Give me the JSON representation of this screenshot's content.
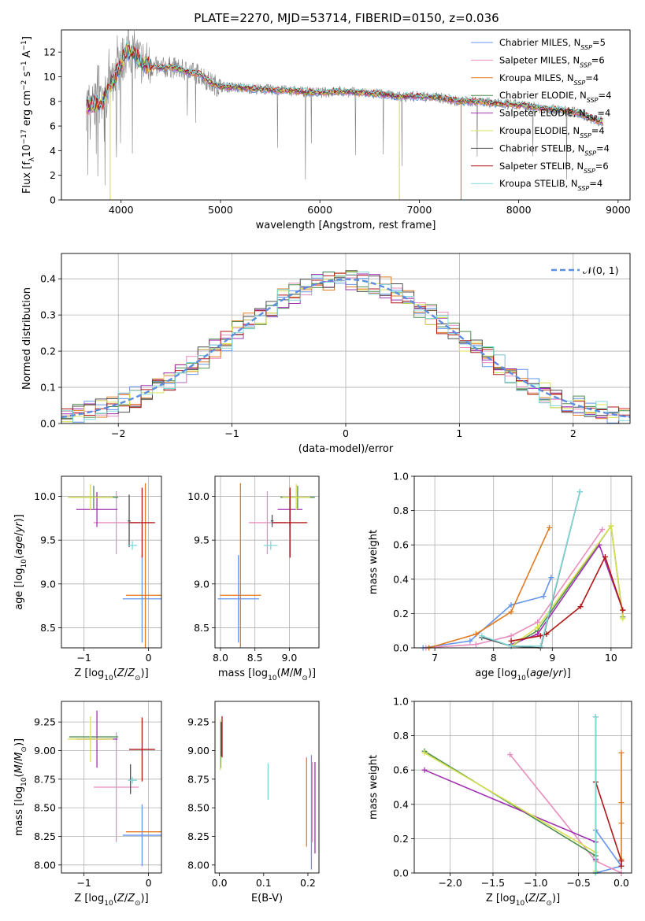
{
  "figure_title": "PLATE=2270, MJD=53714, FIBERID=0150, z=0.036",
  "colors": {
    "Chabrier MILES": "#6495ed",
    "Salpeter MILES": "#e88dbd",
    "Kroupa MILES": "#e07b20",
    "Chabrier ELODIE": "#4e8f4e",
    "Salpeter ELODIE": "#a030b0",
    "Kroupa ELODIE": "#d8e050",
    "Chabrier STELIB": "#505050",
    "Salpeter STELIB": "#b01818",
    "Kroupa STELIB": "#80d8d8",
    "data": "#808080",
    "normal": "#5b8ee0"
  },
  "chart_data": [
    {
      "id": "spectrum",
      "type": "line",
      "title": "",
      "xlabel": "wavelength [Angstrom, rest frame]",
      "ylabel": "Flux [f_λ10^-17 erg cm^-2 s^-1 A^-1]",
      "xlim": [
        3400,
        9120
      ],
      "ylim": [
        0,
        13.8
      ],
      "xticks": [
        4000,
        5000,
        6000,
        7000,
        8000,
        9000
      ],
      "yticks": [
        0,
        2,
        4,
        6,
        8,
        10,
        12
      ],
      "grid": false,
      "legend_position": "top-right",
      "legend": [
        {
          "name": "Chabrier MILES",
          "nssp": "5"
        },
        {
          "name": "Salpeter MILES",
          "nssp": "6"
        },
        {
          "name": "Kroupa MILES",
          "nssp": "4"
        },
        {
          "name": "Chabrier ELODIE",
          "nssp": "4"
        },
        {
          "name": "Salpeter ELODIE",
          "nssp": "4"
        },
        {
          "name": "Kroupa ELODIE",
          "nssp": "4"
        },
        {
          "name": "Chabrier STELIB",
          "nssp": "4"
        },
        {
          "name": "Salpeter STELIB",
          "nssp": "6"
        },
        {
          "name": "Kroupa STELIB",
          "nssp": "4"
        }
      ],
      "continuum": {
        "wavelength": [
          3650,
          3700,
          3800,
          3900,
          4000,
          4050,
          4100,
          4200,
          4300,
          4400,
          4500,
          4600,
          4700,
          4800,
          4900,
          5000,
          5200,
          5400,
          5600,
          5800,
          6000,
          6200,
          6400,
          6600,
          6800,
          7000,
          7200,
          7400,
          7600,
          7800,
          8000,
          8200,
          8400,
          8600,
          8800
        ],
        "flux": [
          7.6,
          7.8,
          7.7,
          9.4,
          11.1,
          12.1,
          12.0,
          11.3,
          10.8,
          10.7,
          10.8,
          10.6,
          10.3,
          10.2,
          9.5,
          9.2,
          9.1,
          9.0,
          8.9,
          8.8,
          8.7,
          8.8,
          8.7,
          8.6,
          8.4,
          8.4,
          8.3,
          8.0,
          8.0,
          7.8,
          7.7,
          7.5,
          7.3,
          7.1,
          6.4
        ]
      },
      "model_dropouts": [
        {
          "series": "Kroupa MILES",
          "wavelength": 7420
        },
        {
          "series": "Kroupa ELODIE",
          "wavelength": 6800
        },
        {
          "series": "Kroupa ELODIE",
          "wavelength": 3890
        }
      ]
    },
    {
      "id": "residuals",
      "type": "bar",
      "title": "",
      "xlabel": "(data-model)/error",
      "ylabel": "Normed distribution",
      "xlim": [
        -2.5,
        2.5
      ],
      "ylim": [
        0,
        0.47
      ],
      "xticks": [
        -2,
        -1,
        0,
        1,
        2
      ],
      "xtick_labels": [
        "−2",
        "−1",
        "0",
        "1",
        "2"
      ],
      "yticks": [
        0.0,
        0.1,
        0.2,
        0.3,
        0.4
      ],
      "grid": true,
      "legend_position": "top-right",
      "legend": [
        "𝒩(0, 1)"
      ],
      "bin_width": 0.1,
      "bins_from": -2.5,
      "bins_to": 2.5,
      "series_note": "Nine step histograms, one per model, closely following N(0,1)."
    },
    {
      "id": "age_vs_Z",
      "type": "scatter",
      "xlabel": "Z [log10(Z/Z⊙)]",
      "ylabel": "age [log10(age/yr)]",
      "xlim": [
        -1.35,
        0.2
      ],
      "ylim": [
        8.27,
        10.23
      ],
      "xticks": [
        -1,
        0
      ],
      "xtick_labels": [
        "−1",
        "0"
      ],
      "yticks": [
        8.5,
        9.0,
        9.5,
        10.0
      ],
      "grid": true,
      "points": [
        {
          "series": "Chabrier MILES",
          "x": -0.1,
          "y": 8.83,
          "xerr": 0.3,
          "yerr": 0.5
        },
        {
          "series": "Salpeter MILES",
          "x": -0.5,
          "y": 9.7,
          "xerr": 0.35,
          "yerr": 0.36
        },
        {
          "series": "Kroupa MILES",
          "x": -0.05,
          "y": 8.87,
          "xerr": 0.3,
          "yerr": 1.28
        },
        {
          "series": "Chabrier ELODIE",
          "x": -0.85,
          "y": 9.99,
          "xerr": 0.38,
          "yerr": 0.13
        },
        {
          "series": "Salpeter ELODIE",
          "x": -0.8,
          "y": 9.85,
          "xerr": 0.32,
          "yerr": 0.2
        },
        {
          "series": "Kroupa ELODIE",
          "x": -0.9,
          "y": 9.99,
          "xerr": 0.35,
          "yerr": 0.15
        },
        {
          "series": "Chabrier STELIB",
          "x": -0.3,
          "y": 9.72,
          "xerr": 0.02,
          "yerr": 0.3
        },
        {
          "series": "Salpeter STELIB",
          "x": -0.1,
          "y": 9.7,
          "xerr": 0.2,
          "yerr": 0.4
        },
        {
          "series": "Kroupa STELIB",
          "x": -0.25,
          "y": 9.44,
          "xerr": 0.07,
          "yerr": 0.05
        }
      ]
    },
    {
      "id": "age_vs_mass",
      "type": "scatter",
      "xlabel": "mass [log10(M/M⊙)]",
      "ylabel": "",
      "xlim": [
        7.92,
        9.43
      ],
      "ylim": [
        8.27,
        10.23
      ],
      "xticks": [
        8.0,
        8.5,
        9.0
      ],
      "yticks": [
        8.5,
        9.0,
        9.5,
        10.0
      ],
      "grid": true,
      "points": [
        {
          "series": "Chabrier MILES",
          "x": 8.26,
          "y": 8.83,
          "xerr": 0.3,
          "yerr": 0.5
        },
        {
          "series": "Salpeter MILES",
          "x": 8.68,
          "y": 9.7,
          "xerr": 0.27,
          "yerr": 0.36
        },
        {
          "series": "Kroupa MILES",
          "x": 8.29,
          "y": 8.87,
          "xerr": 0.3,
          "yerr": 1.28
        },
        {
          "series": "Chabrier ELODIE",
          "x": 9.12,
          "y": 9.99,
          "xerr": 0.25,
          "yerr": 0.13
        },
        {
          "series": "Salpeter ELODIE",
          "x": 9.01,
          "y": 9.85,
          "xerr": 0.18,
          "yerr": 0.2
        },
        {
          "series": "Kroupa ELODIE",
          "x": 9.1,
          "y": 9.99,
          "xerr": 0.2,
          "yerr": 0.15
        },
        {
          "series": "Chabrier STELIB",
          "x": 8.75,
          "y": 9.72,
          "xerr": 0.02,
          "yerr": 0.07
        },
        {
          "series": "Salpeter STELIB",
          "x": 9.01,
          "y": 9.7,
          "xerr": 0.25,
          "yerr": 0.4
        },
        {
          "series": "Kroupa STELIB",
          "x": 8.73,
          "y": 9.44,
          "xerr": 0.1,
          "yerr": 0.05
        }
      ]
    },
    {
      "id": "weight_vs_age",
      "type": "line",
      "xlabel": "age [log10(age/yr)]",
      "ylabel": "mass weight",
      "xlim": [
        6.65,
        10.35
      ],
      "ylim": [
        0,
        1.0
      ],
      "xticks": [
        7,
        8,
        9,
        10
      ],
      "yticks": [
        0.0,
        0.2,
        0.4,
        0.6,
        0.8,
        1.0
      ],
      "grid": true,
      "series": [
        {
          "name": "Chabrier MILES",
          "x": [
            6.8,
            7.6,
            8.3,
            8.85,
            8.98
          ],
          "y": [
            0.0,
            0.04,
            0.25,
            0.3,
            0.41
          ]
        },
        {
          "name": "Salpeter MILES",
          "x": [
            6.85,
            7.7,
            8.3,
            8.75,
            9.85
          ],
          "y": [
            0.0,
            0.02,
            0.07,
            0.15,
            0.69
          ]
        },
        {
          "name": "Kroupa MILES",
          "x": [
            6.9,
            7.7,
            8.3,
            8.95
          ],
          "y": [
            0.0,
            0.08,
            0.21,
            0.7
          ]
        },
        {
          "name": "Chabrier ELODIE",
          "x": [
            8.3,
            8.75,
            10.0,
            10.2
          ],
          "y": [
            0.01,
            0.1,
            0.71,
            0.18
          ]
        },
        {
          "name": "Salpeter ELODIE",
          "x": [
            8.3,
            8.75,
            9.8,
            10.2
          ],
          "y": [
            0.02,
            0.08,
            0.6,
            0.22
          ]
        },
        {
          "name": "Kroupa ELODIE",
          "x": [
            8.3,
            8.75,
            10.0,
            10.2
          ],
          "y": [
            0.01,
            0.12,
            0.71,
            0.17
          ]
        },
        {
          "name": "Chabrier STELIB",
          "x": [
            7.8,
            8.3,
            8.8,
            9.47
          ],
          "y": [
            0.06,
            0.01,
            0.0,
            0.91
          ]
        },
        {
          "name": "Salpeter STELIB",
          "x": [
            8.3,
            8.8,
            8.9,
            9.48,
            9.9,
            10.2
          ],
          "y": [
            0.04,
            0.07,
            0.08,
            0.24,
            0.53,
            0.22
          ]
        },
        {
          "name": "Kroupa STELIB",
          "x": [
            7.8,
            8.3,
            8.8,
            9.47
          ],
          "y": [
            0.07,
            0.01,
            0.01,
            0.91
          ]
        }
      ]
    },
    {
      "id": "mass_vs_Z",
      "type": "scatter",
      "xlabel": "Z [log10(Z/Z⊙)]",
      "ylabel": "mass [log10(M/M⊙)]",
      "xlim": [
        -1.35,
        0.2
      ],
      "ylim": [
        7.93,
        9.43
      ],
      "xticks": [
        -1,
        0
      ],
      "xtick_labels": [
        "−1",
        "0"
      ],
      "yticks": [
        8.0,
        8.25,
        8.5,
        8.75,
        9.0,
        9.25
      ],
      "grid": true,
      "points": [
        {
          "series": "Chabrier MILES",
          "x": -0.1,
          "y": 8.26,
          "xerr": 0.3,
          "yerr": 0.27
        },
        {
          "series": "Salpeter MILES",
          "x": -0.5,
          "y": 8.68,
          "xerr": 0.35,
          "yerr": 0.48
        },
        {
          "series": "Kroupa MILES",
          "x": -0.05,
          "y": 8.29,
          "xerr": 0.3,
          "yerr": 0.0
        },
        {
          "series": "Chabrier ELODIE",
          "x": -0.85,
          "y": 9.12,
          "xerr": 0.38,
          "yerr": 0.0
        },
        {
          "series": "Salpeter ELODIE",
          "x": -0.8,
          "y": 9.1,
          "xerr": 0.32,
          "yerr": 0.25
        },
        {
          "series": "Kroupa ELODIE",
          "x": -0.9,
          "y": 9.1,
          "xerr": 0.35,
          "yerr": 0.2
        },
        {
          "series": "Chabrier STELIB",
          "x": -0.28,
          "y": 8.75,
          "xerr": 0.0,
          "yerr": 0.13
        },
        {
          "series": "Salpeter STELIB",
          "x": -0.1,
          "y": 9.01,
          "xerr": 0.2,
          "yerr": 0.28
        },
        {
          "series": "Kroupa STELIB",
          "x": -0.25,
          "y": 8.74,
          "xerr": 0.07,
          "yerr": 0.03
        }
      ]
    },
    {
      "id": "mass_vs_ebv",
      "type": "scatter",
      "xlabel": "E(B-V)",
      "ylabel": "",
      "xlim": [
        -0.01,
        0.225
      ],
      "ylim": [
        7.93,
        9.43
      ],
      "xticks": [
        0.0,
        0.1,
        0.2
      ],
      "yticks": [
        8.0,
        8.25,
        8.5,
        8.75,
        9.0,
        9.25
      ],
      "grid": false,
      "points": [
        {
          "series": "Chabrier MILES",
          "x": 0.208,
          "y": 8.46,
          "yerr": 0.5
        },
        {
          "series": "Salpeter MILES",
          "x": 0.21,
          "y": 8.55,
          "yerr": 0.35
        },
        {
          "series": "Kroupa MILES",
          "x": 0.197,
          "y": 8.55,
          "yerr": 0.39
        },
        {
          "series": "Chabrier ELODIE",
          "x": 0.003,
          "y": 9.05,
          "yerr": 0.2
        },
        {
          "series": "Salpeter ELODIE",
          "x": 0.216,
          "y": 8.5,
          "yerr": 0.4
        },
        {
          "series": "Kroupa ELODIE",
          "x": 0.002,
          "y": 9.05,
          "yerr": 0.22
        },
        {
          "series": "Chabrier STELIB",
          "x": 0.004,
          "y": 9.1,
          "yerr": 0.15
        },
        {
          "series": "Salpeter STELIB",
          "x": 0.006,
          "y": 9.12,
          "yerr": 0.18
        },
        {
          "series": "Kroupa STELIB",
          "x": 0.11,
          "y": 8.73,
          "yerr": 0.16
        }
      ]
    },
    {
      "id": "weight_vs_Z",
      "type": "line",
      "xlabel": "Z [log10(Z/Z⊙)]",
      "ylabel": "mass weight",
      "xlim": [
        -2.42,
        0.12
      ],
      "ylim": [
        0,
        1.0
      ],
      "xticks": [
        -2.0,
        -1.5,
        -1.0,
        -0.5,
        0.0
      ],
      "xtick_labels": [
        "−2.0",
        "−1.5",
        "−1.0",
        "−0.5",
        "0.0"
      ],
      "yticks": [
        0.0,
        0.2,
        0.4,
        0.6,
        0.8,
        1.0
      ],
      "grid": true,
      "series": [
        {
          "name": "Chabrier MILES",
          "x": [
            -0.3,
            0.0,
            -0.3
          ],
          "y": [
            0.25,
            0.04,
            0.0
          ]
        },
        {
          "name": "Salpeter MILES",
          "x": [
            -1.3,
            -0.3,
            0.0
          ],
          "y": [
            0.69,
            0.07,
            0.0
          ]
        },
        {
          "name": "Kroupa MILES",
          "x": [
            0.0,
            0.0,
            0.0,
            0.0
          ],
          "y": [
            0.7,
            0.41,
            0.29,
            0.08
          ]
        },
        {
          "name": "Chabrier ELODIE",
          "x": [
            -2.3,
            -0.3,
            -0.3
          ],
          "y": [
            0.71,
            0.1,
            0.01
          ]
        },
        {
          "name": "Salpeter ELODIE",
          "x": [
            -2.3,
            -0.3,
            -0.3
          ],
          "y": [
            0.6,
            0.18,
            0.08
          ]
        },
        {
          "name": "Kroupa ELODIE",
          "x": [
            -2.3,
            -0.3,
            -0.3
          ],
          "y": [
            0.7,
            0.12,
            0.01
          ]
        },
        {
          "name": "Chabrier STELIB",
          "x": [
            -0.3,
            -0.3
          ],
          "y": [
            0.91,
            0.0
          ]
        },
        {
          "name": "Salpeter STELIB",
          "x": [
            -0.3,
            0.0,
            0.0
          ],
          "y": [
            0.53,
            0.07,
            0.04
          ]
        },
        {
          "name": "Kroupa STELIB",
          "x": [
            -0.3,
            -0.3
          ],
          "y": [
            0.91,
            0.0
          ]
        }
      ]
    }
  ]
}
